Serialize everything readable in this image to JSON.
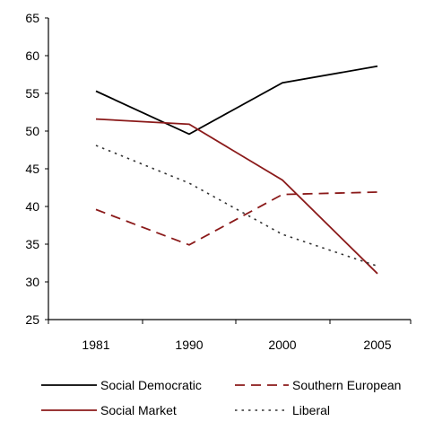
{
  "chart_data": {
    "type": "line",
    "title": "",
    "xlabel": "",
    "ylabel": "",
    "categories": [
      "1981",
      "1990",
      "2000",
      "2005"
    ],
    "ylim": [
      25,
      65
    ],
    "yticks": [
      25,
      30,
      35,
      40,
      45,
      50,
      55,
      60,
      65
    ],
    "grid": false,
    "legend_position": "bottom",
    "series": [
      {
        "name": "Social Democratic",
        "values": [
          55.3,
          49.6,
          56.4,
          58.6
        ],
        "color": "#000000",
        "style": "solid"
      },
      {
        "name": "Southern European",
        "values": [
          39.6,
          34.9,
          41.6,
          41.9
        ],
        "color": "#8b1a1a",
        "style": "dashed"
      },
      {
        "name": "Social Market",
        "values": [
          51.6,
          50.9,
          43.5,
          31.1
        ],
        "color": "#8b1a1a",
        "style": "solid"
      },
      {
        "name": "Liberal",
        "values": [
          48.1,
          43.1,
          36.3,
          32.1
        ],
        "color": "#333333",
        "style": "dotted"
      }
    ]
  }
}
